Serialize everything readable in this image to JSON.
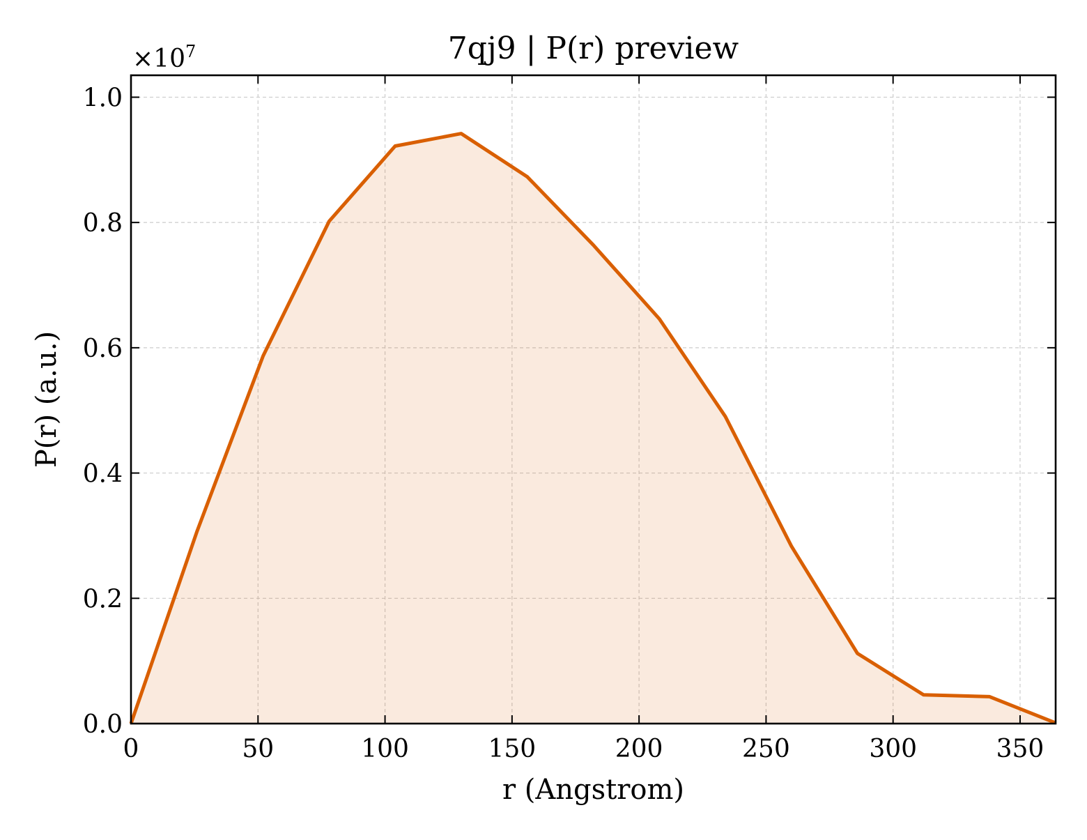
{
  "chart_data": {
    "type": "area",
    "title": "7qj9 | P(r) preview",
    "xlabel": "r (Angstrom)",
    "ylabel": "P(r) (a.u.)",
    "y_offset_label": "×10",
    "y_offset_exponent": "7",
    "xlim": [
      0,
      364
    ],
    "ylim": [
      0,
      1.035
    ],
    "x_ticks": [
      0,
      50,
      100,
      150,
      200,
      250,
      300,
      350
    ],
    "x_tick_labels": [
      "0",
      "50",
      "100",
      "150",
      "200",
      "250",
      "300",
      "350"
    ],
    "y_ticks": [
      0,
      0.2,
      0.4,
      0.6,
      0.8,
      1.0
    ],
    "y_tick_labels": [
      "0.0",
      "0.2",
      "0.4",
      "0.6",
      "0.8",
      "1.0"
    ],
    "grid": true,
    "series": [
      {
        "x": [
          0,
          26,
          52,
          78,
          104,
          130,
          156,
          182,
          208,
          234,
          260,
          286,
          312,
          338,
          364
        ],
        "y": [
          0.0,
          0.307,
          0.587,
          0.802,
          0.922,
          0.942,
          0.873,
          0.764,
          0.646,
          0.49,
          0.283,
          0.112,
          0.046,
          0.043,
          0.001
        ],
        "color": "#d95f02",
        "fill_color": "#d95f02",
        "fill_opacity": 0.13
      }
    ]
  }
}
